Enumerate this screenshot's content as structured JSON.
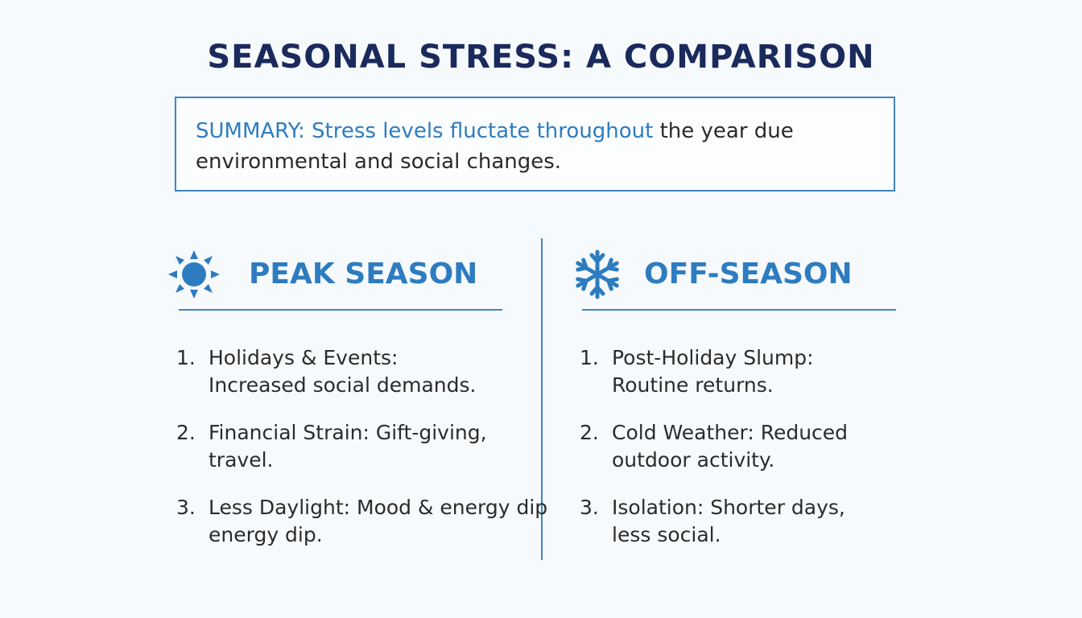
{
  "title": "SEASONAL STRESS: A COMPARISON",
  "summary": {
    "highlight": "SUMMARY: Stress levels fluctate throughout",
    "rest_line1": " the year due",
    "line2": "environmental and social changes."
  },
  "peak": {
    "icon": "sun-icon",
    "title": "PEAK SEASON",
    "items": [
      {
        "num": "1.",
        "line1": "Holidays & Events:",
        "line2": "Increased social demands."
      },
      {
        "num": "2.",
        "line1": "Financial Strain: Gift-giving,",
        "line2": "travel."
      },
      {
        "num": "3.",
        "line1": "Less Daylight: Mood & energy dip",
        "line2": "energy dip."
      }
    ]
  },
  "off": {
    "icon": "snowflake-icon",
    "title": "OFF-SEASON",
    "items": [
      {
        "num": "1.",
        "line1": "Post-Holiday Slump:",
        "line2": "Routine returns."
      },
      {
        "num": "2.",
        "line1": "Cold Weather: Reduced",
        "line2": "outdoor activity."
      },
      {
        "num": "3.",
        "line1": "Isolation: Shorter days,",
        "line2": "less social."
      }
    ]
  },
  "colors": {
    "accent": "#2e7cc0",
    "title": "#1b2a5c",
    "border": "#3f86bd"
  }
}
